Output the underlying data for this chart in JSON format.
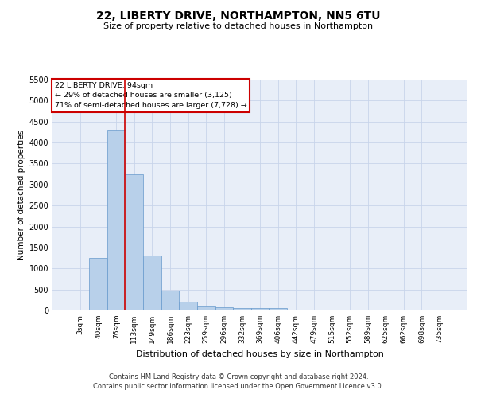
{
  "title1": "22, LIBERTY DRIVE, NORTHAMPTON, NN5 6TU",
  "title2": "Size of property relative to detached houses in Northampton",
  "xlabel": "Distribution of detached houses by size in Northampton",
  "ylabel": "Number of detached properties",
  "footer1": "Contains HM Land Registry data © Crown copyright and database right 2024.",
  "footer2": "Contains public sector information licensed under the Open Government Licence v3.0.",
  "annotation_title": "22 LIBERTY DRIVE: 94sqm",
  "annotation_line1": "← 29% of detached houses are smaller (3,125)",
  "annotation_line2": "71% of semi-detached houses are larger (7,728) →",
  "bar_color": "#b8d0ea",
  "bar_edge_color": "#6699cc",
  "vline_color": "#cc0000",
  "annotation_box_color": "#cc0000",
  "background_color": "#e8eef8",
  "grid_color": "#c8d4ea",
  "categories": [
    "3sqm",
    "40sqm",
    "76sqm",
    "113sqm",
    "149sqm",
    "186sqm",
    "223sqm",
    "259sqm",
    "296sqm",
    "332sqm",
    "369sqm",
    "406sqm",
    "442sqm",
    "479sqm",
    "515sqm",
    "552sqm",
    "589sqm",
    "625sqm",
    "662sqm",
    "698sqm",
    "735sqm"
  ],
  "values": [
    0,
    1250,
    4300,
    3250,
    1300,
    480,
    200,
    100,
    75,
    50,
    50,
    50,
    0,
    0,
    0,
    0,
    0,
    0,
    0,
    0,
    0
  ],
  "ylim": [
    0,
    5500
  ],
  "yticks": [
    0,
    500,
    1000,
    1500,
    2000,
    2500,
    3000,
    3500,
    4000,
    4500,
    5000,
    5500
  ],
  "vline_x": 2.49
}
